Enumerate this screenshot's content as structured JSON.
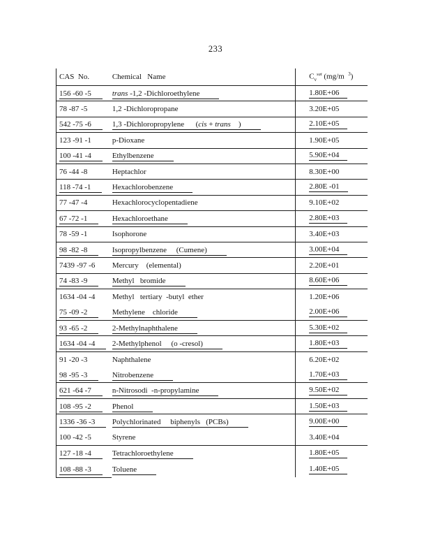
{
  "page": {
    "number": "233"
  },
  "table": {
    "headers": {
      "cas": "CAS  No.",
      "name": "Chemical   Name",
      "value_segments": [
        {
          "t": "C"
        },
        {
          "t": "v",
          "sub": true
        },
        {
          "t": "sat",
          "sup": true,
          "i": true
        },
        {
          "t": " (mg/m  "
        },
        {
          "t": "3",
          "sup": true
        },
        {
          "t": ")"
        }
      ]
    },
    "rows": [
      {
        "cas": "156 -60 -5",
        "name": [
          {
            "t": "trans",
            "i": true
          },
          {
            "t": " -1,2 -Dichloroethylene"
          }
        ],
        "value": "1.80E+06",
        "u": true,
        "rule": true
      },
      {
        "cas": "78 -87 -5",
        "name": [
          {
            "t": "1,2 -Dichloropropane"
          }
        ],
        "value": "3.20E+05",
        "u": false,
        "rule": true
      },
      {
        "cas": "542 -75 -6",
        "name": [
          {
            "t": "1,3 -Dichloropropylene      ("
          },
          {
            "t": "cis",
            "i": true
          },
          {
            "t": " + "
          },
          {
            "t": "trans",
            "i": true
          },
          {
            "t": "    )"
          }
        ],
        "value": "2.10E+05",
        "u": true,
        "rule": true
      },
      {
        "cas": "123 -91 -1",
        "name": [
          {
            "t": "p-Dioxane"
          }
        ],
        "value": "1.90E+05",
        "u": false,
        "rule": true
      },
      {
        "cas": "100 -41 -4",
        "name": [
          {
            "t": "Ethylbenzene"
          }
        ],
        "value": "5.90E+04",
        "u": true,
        "rule": true
      },
      {
        "cas": "76 -44 -8",
        "name": [
          {
            "t": "Heptachlor"
          }
        ],
        "value": "8.30E+00",
        "u": false,
        "rule": true
      },
      {
        "cas": "118 -74 -1",
        "name": [
          {
            "t": "Hexachlorobenzene"
          }
        ],
        "value": "2.80E -01",
        "u": true,
        "rule": true
      },
      {
        "cas": "77 -47 -4",
        "name": [
          {
            "t": "Hexachlorocyclopentadiene"
          }
        ],
        "value": "9.10E+02",
        "u": false,
        "rule": true
      },
      {
        "cas": "67 -72 -1",
        "name": [
          {
            "t": "Hexachloroethane"
          }
        ],
        "value": "2.80E+03",
        "u": true,
        "rule": true
      },
      {
        "cas": "78 -59 -1",
        "name": [
          {
            "t": "Isophorone"
          }
        ],
        "value": "3.40E+03",
        "u": false,
        "rule": true
      },
      {
        "cas": "98 -82 -8",
        "name": [
          {
            "t": "Isopropylbenzene     (Cumene)"
          }
        ],
        "value": "3.00E+04",
        "u": true,
        "rule": true
      },
      {
        "cas": "7439 -97 -6",
        "name": [
          {
            "t": "Mercury    (elemental)"
          }
        ],
        "value": "2.20E+01",
        "u": false,
        "rule": true
      },
      {
        "cas": "74 -83 -9",
        "name": [
          {
            "t": "Methyl   bromide"
          }
        ],
        "value": "8.60E+06",
        "u": true,
        "rule": true
      },
      {
        "cas": "1634 -04 -4",
        "name": [
          {
            "t": "Methyl   tertiary  -butyl  ether"
          }
        ],
        "value": "1.20E+06",
        "u": false,
        "rule": false
      },
      {
        "cas": "75 -09 -2",
        "name": [
          {
            "t": "Methylene    chloride"
          }
        ],
        "value": "2.00E+06",
        "u": true,
        "rule": true
      },
      {
        "cas": "93 -65 -2",
        "name": [
          {
            "t": "2-Methylnaphthalene"
          }
        ],
        "value": "5.30E+02",
        "u": true,
        "rule": true
      },
      {
        "cas": "1634 -04 -4",
        "name": [
          {
            "t": "2-Methylphenol     (o -cresol)"
          }
        ],
        "value": "1.80E+03",
        "u": true,
        "rule": true
      },
      {
        "cas": "91 -20 -3",
        "name": [
          {
            "t": "Naphthalene"
          }
        ],
        "value": "6.20E+02",
        "u": false,
        "rule": false
      },
      {
        "cas": "98 -95 -3",
        "name": [
          {
            "t": "Nitrobenzene"
          }
        ],
        "value": "1.70E+03",
        "u": true,
        "rule": true
      },
      {
        "cas": "621 -64 -7",
        "name": [
          {
            "t": "n-Nitrosodi  -n-propylamine"
          }
        ],
        "value": "9.50E+02",
        "u": true,
        "rule": true
      },
      {
        "cas": "108 -95 -2",
        "name": [
          {
            "t": "Phenol"
          }
        ],
        "value": "1.50E+03",
        "u": true,
        "rule": true
      },
      {
        "cas": "1336 -36 -3",
        "name": [
          {
            "t": "Polychlorinated     biphenyls   (PCBs)"
          }
        ],
        "value": "9.00E+00",
        "u": true,
        "rule": false
      },
      {
        "cas": "100 -42 -5",
        "name": [
          {
            "t": "Styrene"
          }
        ],
        "value": "3.40E+04",
        "u": false,
        "rule": true
      },
      {
        "cas": "127 -18 -4",
        "name": [
          {
            "t": "Tetrachloroethylene"
          }
        ],
        "value": "1.80E+05",
        "u": true,
        "rule": false
      },
      {
        "cas": "108 -88 -3",
        "name": [
          {
            "t": "Toluene"
          }
        ],
        "value": "1.40E+05",
        "u": true,
        "rule": false
      }
    ]
  }
}
